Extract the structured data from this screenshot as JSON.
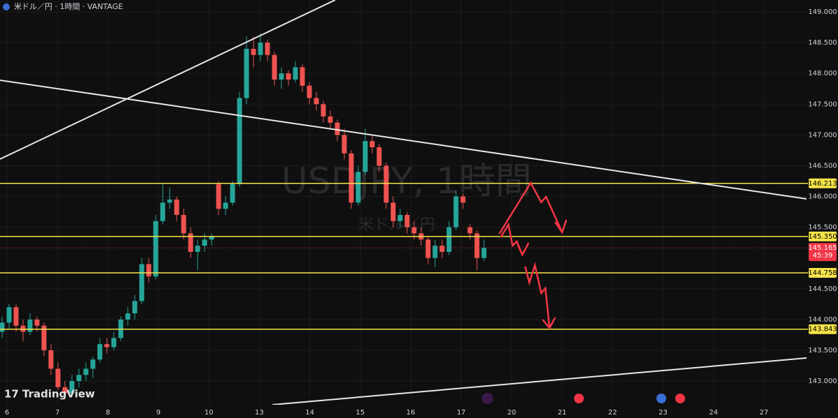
{
  "chart_data": {
    "type": "candlestick",
    "title": "米ドル／円 · 1時間 · VANTAGE",
    "watermark": "USDJPY, 1時間",
    "watermark_sub": "米ドル／円",
    "brand": "TradingView",
    "up_color": "#26a69a",
    "down_color": "#ef5350",
    "level_color": "#f5e34a",
    "ylim": [
      142.615,
      149.193
    ],
    "yticks": [
      {
        "value": 149,
        "label": "149.000"
      },
      {
        "value": 148.5,
        "label": "148.500"
      },
      {
        "value": 148,
        "label": "148.000"
      },
      {
        "value": 147.5,
        "label": "147.500"
      },
      {
        "value": 147,
        "label": "147.000"
      },
      {
        "value": 146.5,
        "label": "146.500"
      },
      {
        "value": 146,
        "label": "146.000"
      },
      {
        "value": 145.5,
        "label": "145.500"
      },
      {
        "value": 144.5,
        "label": "144.500"
      },
      {
        "value": 144,
        "label": "144.000"
      },
      {
        "value": 143.5,
        "label": "143.500"
      },
      {
        "value": 143,
        "label": "143.000"
      }
    ],
    "x_labels": [
      "6",
      "7",
      "8",
      "9",
      "10",
      "13",
      "14",
      "15",
      "16",
      "17",
      "20",
      "21",
      "22",
      "23",
      "24",
      "27"
    ],
    "levels": [
      146.213,
      {
        "value": 145.35,
        "label": "145.350"
      },
      144.758,
      143.843
    ],
    "last_price": 145.165,
    "countdown": "45:39",
    "candles": [
      [
        143.8,
        144.05,
        143.7,
        143.95
      ],
      [
        143.95,
        144.25,
        143.85,
        144.2
      ],
      [
        144.2,
        144.25,
        143.8,
        143.9
      ],
      [
        143.9,
        144.0,
        143.65,
        143.8
      ],
      [
        143.8,
        144.1,
        143.75,
        144.0
      ],
      [
        144.0,
        144.05,
        143.8,
        143.9
      ],
      [
        143.9,
        143.95,
        143.4,
        143.5
      ],
      [
        143.5,
        143.6,
        143.1,
        143.2
      ],
      [
        143.2,
        143.3,
        142.85,
        142.9
      ],
      [
        142.9,
        143.0,
        142.7,
        142.8
      ],
      [
        142.8,
        143.1,
        142.75,
        143.0
      ],
      [
        143.0,
        143.2,
        142.9,
        143.1
      ],
      [
        143.1,
        143.3,
        143.0,
        143.2
      ],
      [
        143.2,
        143.4,
        143.05,
        143.35
      ],
      [
        143.35,
        143.7,
        143.3,
        143.6
      ],
      [
        143.6,
        143.7,
        143.45,
        143.55
      ],
      [
        143.55,
        143.8,
        143.5,
        143.7
      ],
      [
        143.7,
        144.05,
        143.65,
        144.0
      ],
      [
        144.0,
        144.2,
        143.9,
        144.1
      ],
      [
        144.1,
        144.4,
        144.0,
        144.3
      ],
      [
        144.3,
        145.0,
        144.25,
        144.9
      ],
      [
        144.9,
        145.0,
        144.6,
        144.7
      ],
      [
        144.7,
        145.7,
        144.65,
        145.6
      ],
      [
        145.6,
        146.2,
        145.55,
        145.9
      ],
      [
        145.9,
        146.15,
        145.8,
        145.95
      ],
      [
        145.95,
        146.0,
        145.6,
        145.7
      ],
      [
        145.7,
        145.8,
        145.3,
        145.4
      ],
      [
        145.4,
        145.5,
        145.0,
        145.1
      ],
      [
        145.1,
        145.3,
        144.8,
        145.2
      ],
      [
        145.2,
        145.4,
        145.1,
        145.3
      ],
      [
        145.3,
        145.4,
        145.2,
        145.35
      ],
      [
        146.2,
        146.25,
        145.7,
        145.8
      ],
      [
        145.8,
        146.0,
        145.7,
        145.9
      ],
      [
        145.9,
        146.25,
        145.85,
        146.2
      ],
      [
        146.2,
        147.7,
        146.15,
        147.6
      ],
      [
        147.6,
        148.6,
        147.5,
        148.4
      ],
      [
        148.4,
        148.6,
        148.1,
        148.3
      ],
      [
        148.3,
        148.65,
        148.2,
        148.5
      ],
      [
        148.5,
        148.55,
        148.2,
        148.3
      ],
      [
        148.3,
        148.35,
        147.8,
        147.9
      ],
      [
        147.9,
        148.1,
        147.75,
        148.0
      ],
      [
        148.0,
        148.05,
        147.8,
        147.9
      ],
      [
        147.9,
        148.2,
        147.85,
        148.1
      ],
      [
        148.1,
        148.15,
        147.7,
        147.8
      ],
      [
        147.8,
        147.85,
        147.5,
        147.6
      ],
      [
        147.6,
        147.7,
        147.4,
        147.5
      ],
      [
        147.5,
        147.55,
        147.2,
        147.3
      ],
      [
        147.3,
        147.4,
        147.1,
        147.2
      ],
      [
        147.2,
        147.25,
        146.9,
        147.0
      ],
      [
        147.0,
        147.1,
        146.6,
        146.7
      ],
      [
        146.7,
        146.75,
        145.8,
        145.9
      ],
      [
        145.9,
        146.5,
        145.85,
        146.4
      ],
      [
        146.4,
        147.1,
        146.35,
        146.9
      ],
      [
        146.9,
        147.0,
        146.7,
        146.8
      ],
      [
        146.8,
        146.85,
        146.4,
        146.5
      ],
      [
        146.5,
        146.55,
        145.8,
        145.9
      ],
      [
        145.9,
        146.0,
        145.5,
        145.6
      ],
      [
        145.6,
        145.8,
        145.5,
        145.7
      ],
      [
        145.7,
        145.75,
        145.4,
        145.5
      ],
      [
        145.5,
        145.6,
        145.3,
        145.4
      ],
      [
        145.4,
        145.5,
        145.2,
        145.3
      ],
      [
        145.3,
        145.35,
        144.9,
        145.0
      ],
      [
        145.0,
        145.3,
        144.85,
        145.2
      ],
      [
        145.2,
        145.3,
        145.0,
        145.1
      ],
      [
        145.1,
        145.6,
        145.05,
        145.5
      ],
      [
        145.5,
        146.1,
        145.45,
        146.0
      ],
      [
        146.0,
        146.05,
        145.8,
        145.9
      ],
      [
        145.5,
        145.55,
        145.3,
        145.4
      ],
      [
        145.4,
        145.45,
        144.8,
        145.0
      ],
      [
        145.0,
        145.3,
        144.95,
        145.165
      ]
    ]
  }
}
